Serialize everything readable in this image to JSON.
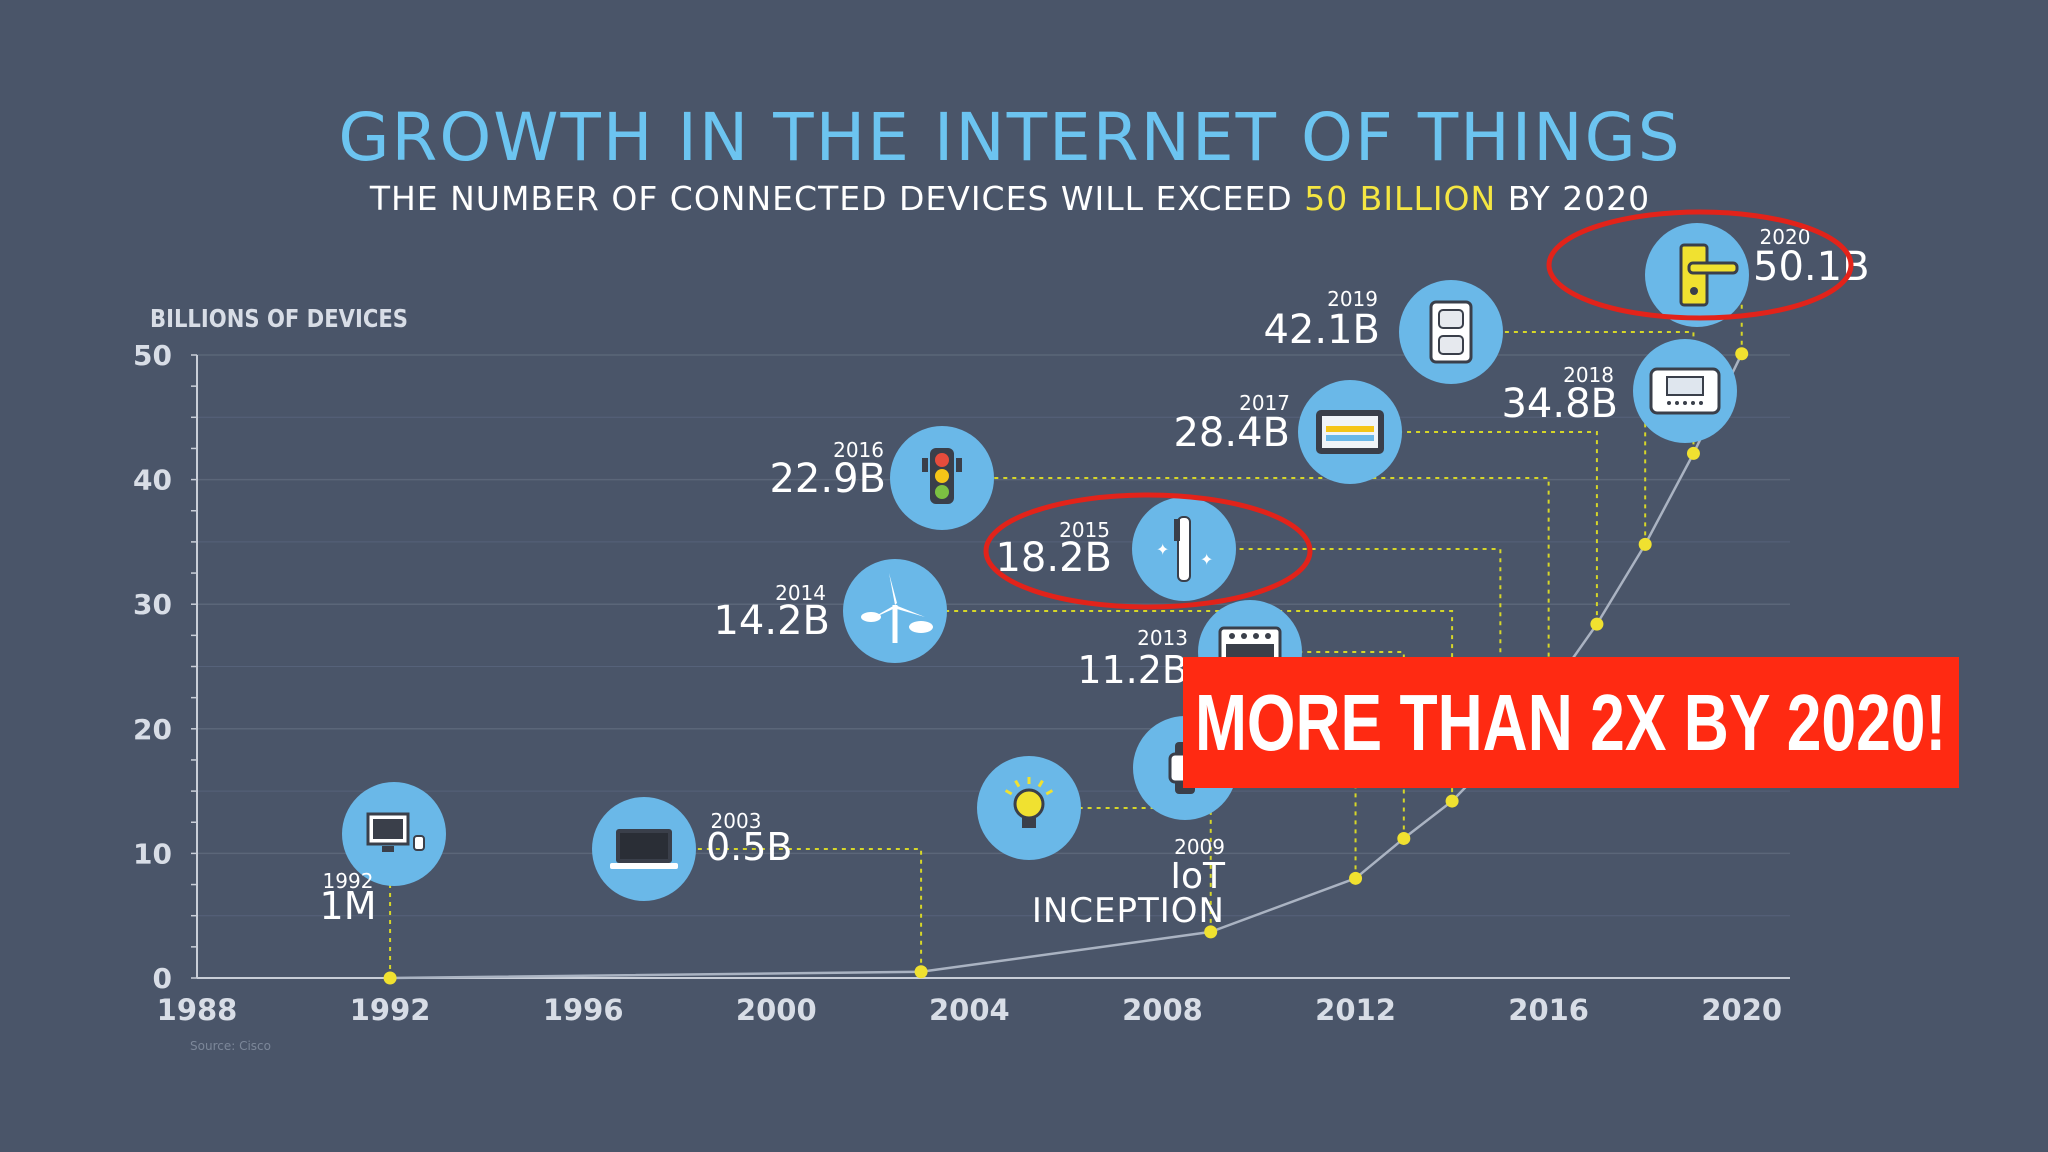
{
  "header": {
    "title": "GROWTH IN THE INTERNET OF THINGS",
    "subtitle_prefix": "THE NUMBER OF CONNECTED DEVICES WILL EXCEED ",
    "subtitle_highlight": "50 BILLION",
    "subtitle_suffix": " BY 2020"
  },
  "source": "Source: Cisco",
  "callout": "MORE THAN 2X BY 2020!",
  "colors": {
    "background": "#4a5569",
    "title": "#6cc4f0",
    "highlight": "#f5e642",
    "point": "#f0e130",
    "icon_circle": "#6ab8e8",
    "callout": "#ff2a12",
    "annotation_ring": "#e2231a"
  },
  "chart_data": {
    "type": "line",
    "title": "GROWTH IN THE INTERNET OF THINGS",
    "subtitle": "THE NUMBER OF CONNECTED DEVICES WILL EXCEED 50 BILLION BY 2020",
    "ylabel": "BILLIONS OF DEVICES",
    "xlabel": "",
    "xlim": [
      1988,
      2021
    ],
    "ylim": [
      0,
      50
    ],
    "x_ticks": [
      1988,
      1992,
      1996,
      2000,
      2004,
      2008,
      2012,
      2016,
      2020
    ],
    "y_ticks": [
      0,
      10,
      20,
      30,
      40,
      50
    ],
    "grid": true,
    "points": [
      {
        "year": 1992,
        "value": 0.001,
        "label": "1M",
        "icon": "desktop-computer-icon"
      },
      {
        "year": 2003,
        "value": 0.5,
        "label": "0.5B",
        "icon": "laptop-icon"
      },
      {
        "year": 2009,
        "value": 3.7,
        "label": "IoT INCEPTION",
        "icon": "lightbulb-icon"
      },
      {
        "year": 2012,
        "value": 8.0,
        "label": "",
        "icon": "smartwatch-icon"
      },
      {
        "year": 2013,
        "value": 11.2,
        "label": "11.2B",
        "icon": "stove-icon"
      },
      {
        "year": 2014,
        "value": 14.2,
        "label": "14.2B",
        "icon": "wind-turbine-icon"
      },
      {
        "year": 2015,
        "value": 18.2,
        "label": "18.2B",
        "icon": "toothbrush-icon"
      },
      {
        "year": 2016,
        "value": 22.9,
        "label": "22.9B",
        "icon": "traffic-light-icon"
      },
      {
        "year": 2017,
        "value": 28.4,
        "label": "28.4B",
        "icon": "tablet-icon"
      },
      {
        "year": 2018,
        "value": 34.8,
        "label": "34.8B",
        "icon": "thermostat-icon"
      },
      {
        "year": 2019,
        "value": 42.1,
        "label": "42.1B",
        "icon": "power-outlet-icon"
      },
      {
        "year": 2020,
        "value": 50.1,
        "label": "50.1B",
        "icon": "door-handle-icon"
      }
    ],
    "highlighted_years": [
      2015,
      2020
    ],
    "legend": "none"
  }
}
